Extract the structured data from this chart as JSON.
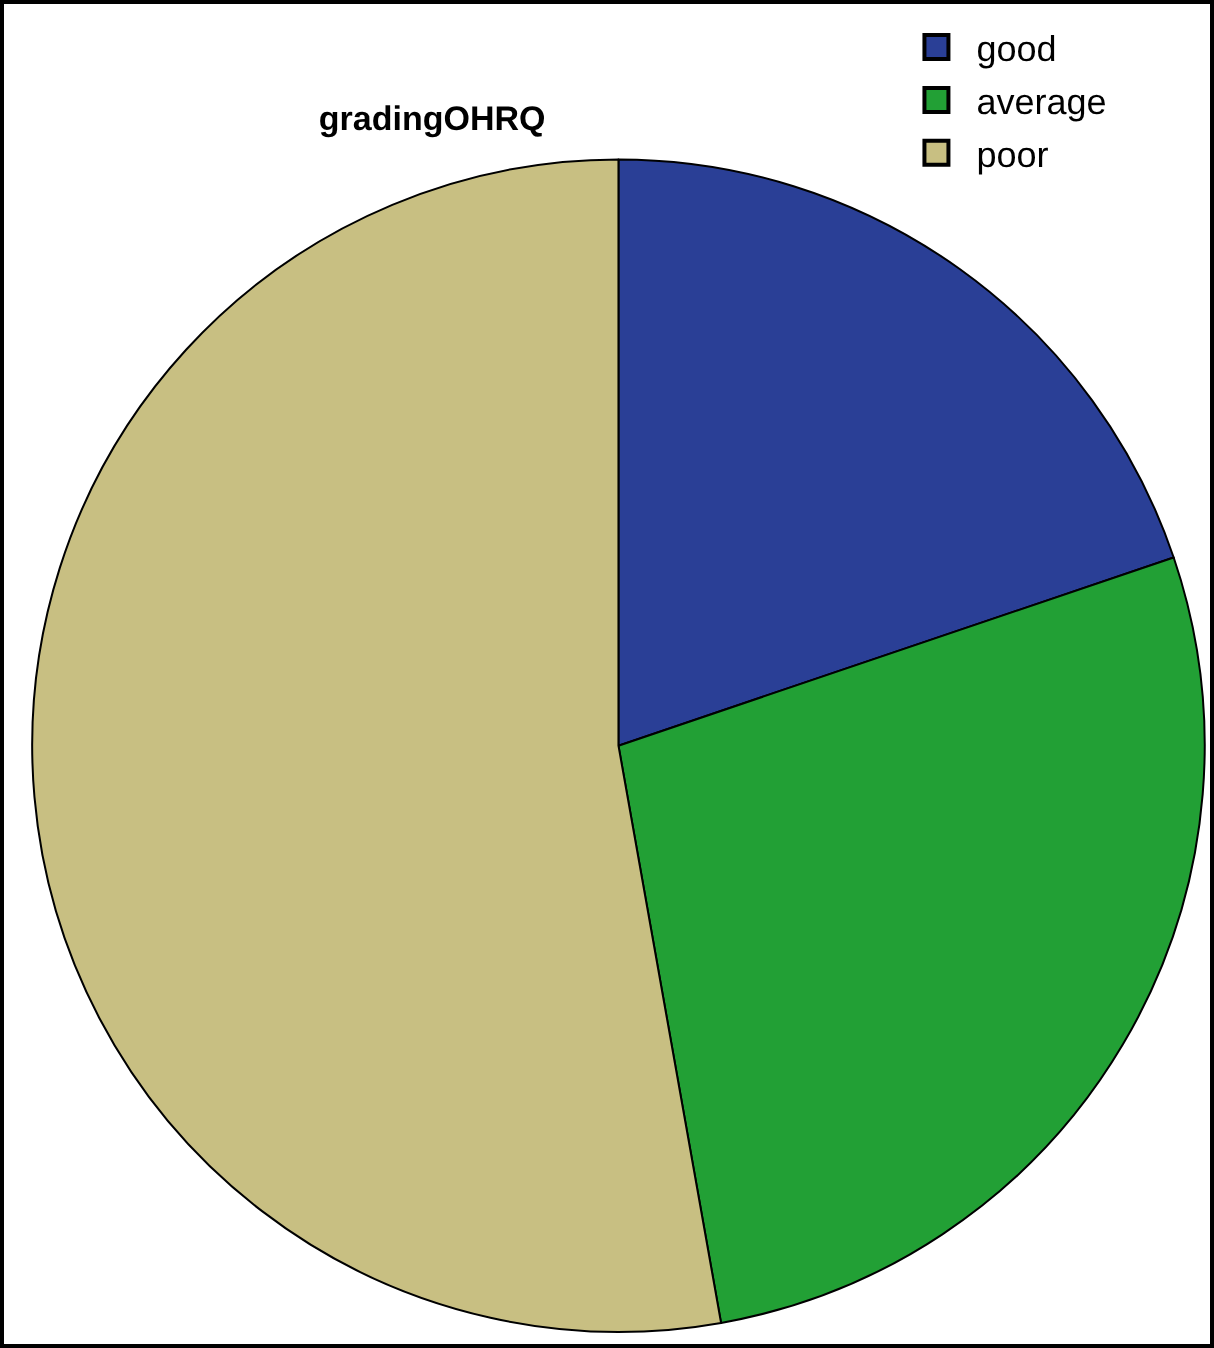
{
  "chart_data": {
    "type": "pie",
    "title": "gradingOHRQ",
    "categories": [
      "good",
      "average",
      "poor"
    ],
    "values": [
      19.8,
      27.4,
      52.8
    ],
    "colors": [
      "#2a3f96",
      "#22a035",
      "#c8bf82"
    ],
    "legend": "top right"
  }
}
